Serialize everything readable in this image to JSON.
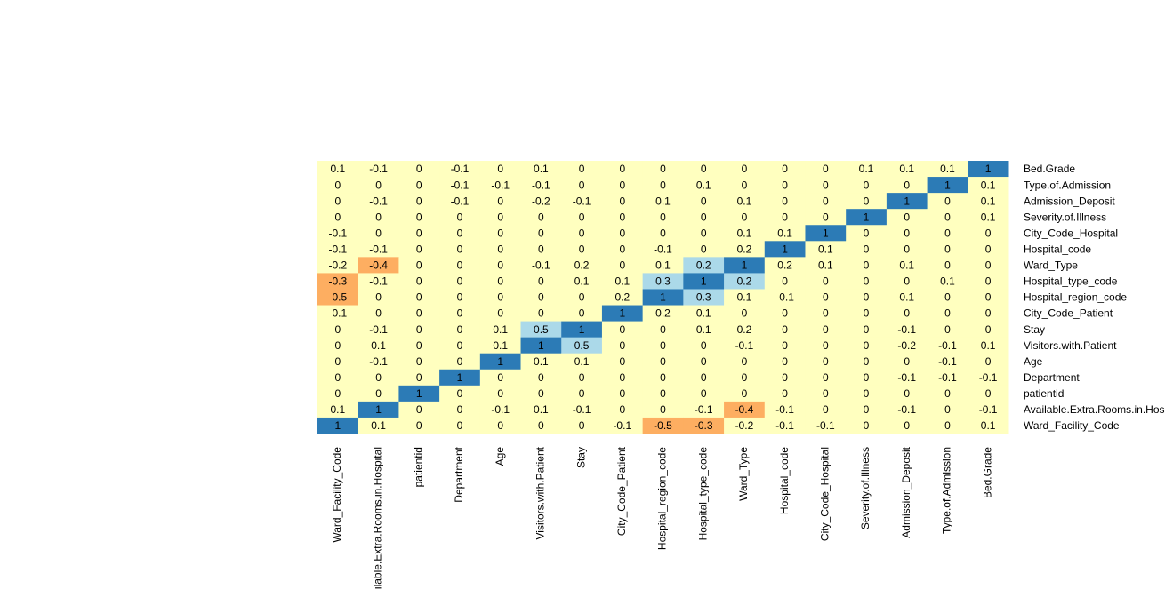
{
  "chart_data": {
    "type": "heatmap",
    "x": [
      "Ward_Facility_Code",
      "Available.Extra.Rooms.in.Hospital",
      "patientid",
      "Department",
      "Age",
      "Visitors.with.Patient",
      "Stay",
      "City_Code_Patient",
      "Hospital_region_code",
      "Hospital_type_code",
      "Ward_Type",
      "Hospital_code",
      "City_Code_Hospital",
      "Severity.of.Illness",
      "Admission_Deposit",
      "Type.of.Admission",
      "Bed.Grade"
    ],
    "y": [
      "Bed.Grade",
      "Type.of.Admission",
      "Admission_Deposit",
      "Severity.of.Illness",
      "City_Code_Hospital",
      "Hospital_code",
      "Ward_Type",
      "Hospital_type_code",
      "Hospital_region_code",
      "City_Code_Patient",
      "Stay",
      "Visitors.with.Patient",
      "Age",
      "Department",
      "patientid",
      "Available.Extra.Rooms.in.Hospital",
      "Ward_Facility_Code"
    ],
    "values": [
      [
        0.1,
        -0.1,
        0,
        -0.1,
        0,
        0.1,
        0,
        0,
        0,
        0,
        0,
        0,
        0,
        0.1,
        0.1,
        0.1,
        1
      ],
      [
        0,
        0,
        0,
        -0.1,
        -0.1,
        -0.1,
        0,
        0,
        0,
        0.1,
        0,
        0,
        0,
        0,
        0,
        1,
        0.1
      ],
      [
        0,
        -0.1,
        0,
        -0.1,
        0,
        -0.2,
        -0.1,
        0,
        0.1,
        0,
        0.1,
        0,
        0,
        0,
        1,
        0,
        0.1
      ],
      [
        0,
        0,
        0,
        0,
        0,
        0,
        0,
        0,
        0,
        0,
        0,
        0,
        0,
        1,
        0,
        0,
        0.1
      ],
      [
        -0.1,
        0,
        0,
        0,
        0,
        0,
        0,
        0,
        0,
        0,
        0.1,
        0.1,
        1,
        0,
        0,
        0,
        0
      ],
      [
        -0.1,
        -0.1,
        0,
        0,
        0,
        0,
        0,
        0,
        -0.1,
        0,
        0.2,
        1,
        0.1,
        0,
        0,
        0,
        0
      ],
      [
        -0.2,
        -0.4,
        0,
        0,
        0,
        -0.1,
        0.2,
        0,
        0.1,
        0.2,
        1,
        0.2,
        0.1,
        0,
        0.1,
        0,
        0
      ],
      [
        -0.3,
        -0.1,
        0,
        0,
        0,
        0,
        0.1,
        0.1,
        0.3,
        1,
        0.2,
        0,
        0,
        0,
        0,
        0.1,
        0
      ],
      [
        -0.5,
        0,
        0,
        0,
        0,
        0,
        0,
        0.2,
        1,
        0.3,
        0.1,
        -0.1,
        0,
        0,
        0.1,
        0,
        0
      ],
      [
        -0.1,
        0,
        0,
        0,
        0,
        0,
        0,
        1,
        0.2,
        0.1,
        0,
        0,
        0,
        0,
        0,
        0,
        0
      ],
      [
        0,
        -0.1,
        0,
        0,
        0.1,
        0.5,
        1,
        0,
        0,
        0.1,
        0.2,
        0,
        0,
        0,
        -0.1,
        0,
        0
      ],
      [
        0,
        0.1,
        0,
        0,
        0.1,
        1,
        0.5,
        0,
        0,
        0,
        -0.1,
        0,
        0,
        0,
        -0.2,
        -0.1,
        0.1
      ],
      [
        0,
        -0.1,
        0,
        0,
        1,
        0.1,
        0.1,
        0,
        0,
        0,
        0,
        0,
        0,
        0,
        0,
        -0.1,
        0
      ],
      [
        0,
        0,
        0,
        1,
        0,
        0,
        0,
        0,
        0,
        0,
        0,
        0,
        0,
        0,
        -0.1,
        -0.1,
        -0.1
      ],
      [
        0,
        0,
        1,
        0,
        0,
        0,
        0,
        0,
        0,
        0,
        0,
        0,
        0,
        0,
        0,
        0,
        0
      ],
      [
        0.1,
        1,
        0,
        0,
        -0.1,
        0.1,
        -0.1,
        0,
        0,
        -0.1,
        -0.4,
        -0.1,
        0,
        0,
        -0.1,
        0,
        -0.1
      ],
      [
        1,
        0.1,
        0,
        0,
        0,
        0,
        0,
        -0.1,
        -0.5,
        -0.3,
        -0.2,
        -0.1,
        -0.1,
        0,
        0,
        0,
        0.1
      ]
    ],
    "palette": [
      "#ffffbf",
      "#abd9e9",
      "#2c7bb6",
      "#fdae61"
    ],
    "color_levels": [
      [
        0,
        0,
        0,
        0,
        0,
        0,
        0,
        0,
        0,
        0,
        0,
        0,
        0,
        0,
        0,
        0,
        2
      ],
      [
        0,
        0,
        0,
        0,
        0,
        0,
        0,
        0,
        0,
        0,
        0,
        0,
        0,
        0,
        0,
        2,
        0
      ],
      [
        0,
        0,
        0,
        0,
        0,
        0,
        0,
        0,
        0,
        0,
        0,
        0,
        0,
        0,
        2,
        0,
        0
      ],
      [
        0,
        0,
        0,
        0,
        0,
        0,
        0,
        0,
        0,
        0,
        0,
        0,
        0,
        2,
        0,
        0,
        0
      ],
      [
        0,
        0,
        0,
        0,
        0,
        0,
        0,
        0,
        0,
        0,
        0,
        0,
        2,
        0,
        0,
        0,
        0
      ],
      [
        0,
        0,
        0,
        0,
        0,
        0,
        0,
        0,
        0,
        0,
        0,
        2,
        0,
        0,
        0,
        0,
        0
      ],
      [
        0,
        3,
        0,
        0,
        0,
        0,
        0,
        0,
        0,
        1,
        2,
        0,
        0,
        0,
        0,
        0,
        0
      ],
      [
        3,
        0,
        0,
        0,
        0,
        0,
        0,
        0,
        1,
        2,
        1,
        0,
        0,
        0,
        0,
        0,
        0
      ],
      [
        3,
        0,
        0,
        0,
        0,
        0,
        0,
        0,
        2,
        1,
        0,
        0,
        0,
        0,
        0,
        0,
        0
      ],
      [
        0,
        0,
        0,
        0,
        0,
        0,
        0,
        2,
        0,
        0,
        0,
        0,
        0,
        0,
        0,
        0,
        0
      ],
      [
        0,
        0,
        0,
        0,
        0,
        1,
        2,
        0,
        0,
        0,
        0,
        0,
        0,
        0,
        0,
        0,
        0
      ],
      [
        0,
        0,
        0,
        0,
        0,
        2,
        1,
        0,
        0,
        0,
        0,
        0,
        0,
        0,
        0,
        0,
        0
      ],
      [
        0,
        0,
        0,
        0,
        2,
        0,
        0,
        0,
        0,
        0,
        0,
        0,
        0,
        0,
        0,
        0,
        0
      ],
      [
        0,
        0,
        0,
        2,
        0,
        0,
        0,
        0,
        0,
        0,
        0,
        0,
        0,
        0,
        0,
        0,
        0
      ],
      [
        0,
        0,
        2,
        0,
        0,
        0,
        0,
        0,
        0,
        0,
        0,
        0,
        0,
        0,
        0,
        0,
        0
      ],
      [
        0,
        2,
        0,
        0,
        0,
        0,
        0,
        0,
        0,
        0,
        3,
        0,
        0,
        0,
        0,
        0,
        0
      ],
      [
        2,
        0,
        0,
        0,
        0,
        0,
        0,
        0,
        3,
        3,
        0,
        0,
        0,
        0,
        0,
        0,
        0
      ]
    ]
  }
}
